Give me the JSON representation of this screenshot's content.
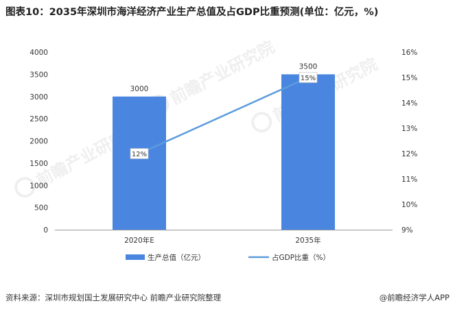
{
  "title": "图表10：2035年深圳市海洋经济产业生产总值及占GDP比重预测(单位：亿元，%)",
  "source": "资料来源：深圳市规划国土发展研究中心 前瞻产业研究院整理",
  "app_credit": "@前瞻经济学人APP",
  "watermark": "前瞻产业研究院",
  "colors": {
    "bar": "#4a86e0",
    "line": "#5b9bdc",
    "axis": "#999999",
    "text": "#333333"
  },
  "chart_data": {
    "type": "bar",
    "categories": [
      "2020年E",
      "2035年"
    ],
    "series": [
      {
        "name": "生产总值（亿元）",
        "type": "bar",
        "axis": "left",
        "values": [
          3000,
          3500
        ]
      },
      {
        "name": "占GDP比重（%）",
        "type": "line",
        "axis": "right",
        "values": [
          12,
          15
        ]
      }
    ],
    "bar_labels": [
      "3000",
      "3500"
    ],
    "line_labels": [
      "12%",
      "15%"
    ],
    "y_left": {
      "min": 0,
      "max": 4000,
      "ticks": [
        "0",
        "500",
        "1000",
        "1500",
        "2000",
        "2500",
        "3000",
        "3500",
        "4000"
      ]
    },
    "y_right": {
      "min": 9,
      "max": 16,
      "ticks": [
        "9%",
        "10%",
        "11%",
        "12%",
        "13%",
        "14%",
        "15%",
        "16%"
      ]
    },
    "legend_position": "bottom",
    "grid": false
  }
}
